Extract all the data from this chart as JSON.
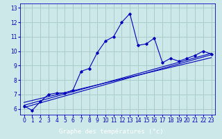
{
  "xlabel": "Graphe des températures (°c)",
  "bg_color": "#cce8e8",
  "grid_color": "#aacccc",
  "line_color": "#0000bb",
  "axis_label_bg": "#0000aa",
  "axis_label_fg": "#ffffff",
  "x_hours": [
    0,
    1,
    2,
    3,
    4,
    5,
    6,
    7,
    8,
    9,
    10,
    11,
    12,
    13,
    14,
    15,
    16,
    17,
    18,
    19,
    20,
    21,
    22,
    23
  ],
  "temps": [
    6.2,
    5.9,
    6.5,
    7.0,
    7.1,
    7.1,
    7.3,
    8.6,
    8.8,
    9.9,
    10.7,
    11.0,
    12.0,
    12.6,
    10.4,
    10.5,
    10.9,
    9.2,
    9.5,
    9.3,
    9.5,
    9.7,
    10.0,
    9.8
  ],
  "reg_lines": [
    [
      6.1,
      9.75
    ],
    [
      6.25,
      9.85
    ],
    [
      6.45,
      9.55
    ]
  ],
  "ylim": [
    5.6,
    13.3
  ],
  "xlim": [
    -0.5,
    23.5
  ],
  "yticks": [
    6,
    7,
    8,
    9,
    10,
    11,
    12,
    13
  ],
  "xticks": [
    0,
    1,
    2,
    3,
    4,
    5,
    6,
    7,
    8,
    9,
    10,
    11,
    12,
    13,
    14,
    15,
    16,
    17,
    18,
    19,
    20,
    21,
    22,
    23
  ],
  "tick_fontsize": 5.5,
  "xlabel_fontsize": 6.5
}
